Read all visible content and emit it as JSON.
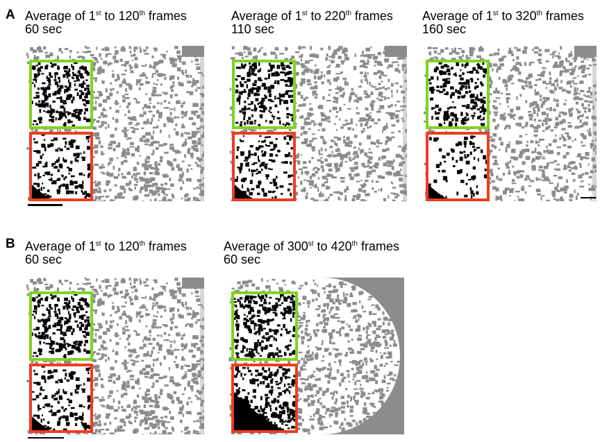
{
  "row_a": {
    "label": "A",
    "panels": [
      {
        "prefix": "Average of 1",
        "sup1": "st",
        "middle": " to 120",
        "sup2": "th",
        "suffix": " frames",
        "duration": "60 sec"
      },
      {
        "prefix": "Average of 1",
        "sup1": "st",
        "middle": " to 220",
        "sup2": "th",
        "suffix": " frames",
        "duration": "110 sec"
      },
      {
        "prefix": "Average of 1",
        "sup1": "st",
        "middle": " to 320",
        "sup2": "th",
        "suffix": " frames",
        "duration": "160 sec"
      }
    ]
  },
  "row_b": {
    "label": "B",
    "panels": [
      {
        "prefix": "Average of 1",
        "sup1": "st",
        "middle": " to 120",
        "sup2": "th",
        "suffix": " frames",
        "duration": "60 sec"
      },
      {
        "prefix": "Average of 300",
        "sup1": "st",
        "middle": " to 420",
        "sup2": "th",
        "suffix": " frames",
        "duration": "60 sec"
      }
    ]
  },
  "colors": {
    "upper_roi_box": "#7ed321",
    "lower_roi_box": "#f03c1e",
    "background_speckle": "#8c8c8c",
    "roi_speckle": "#000000"
  }
}
